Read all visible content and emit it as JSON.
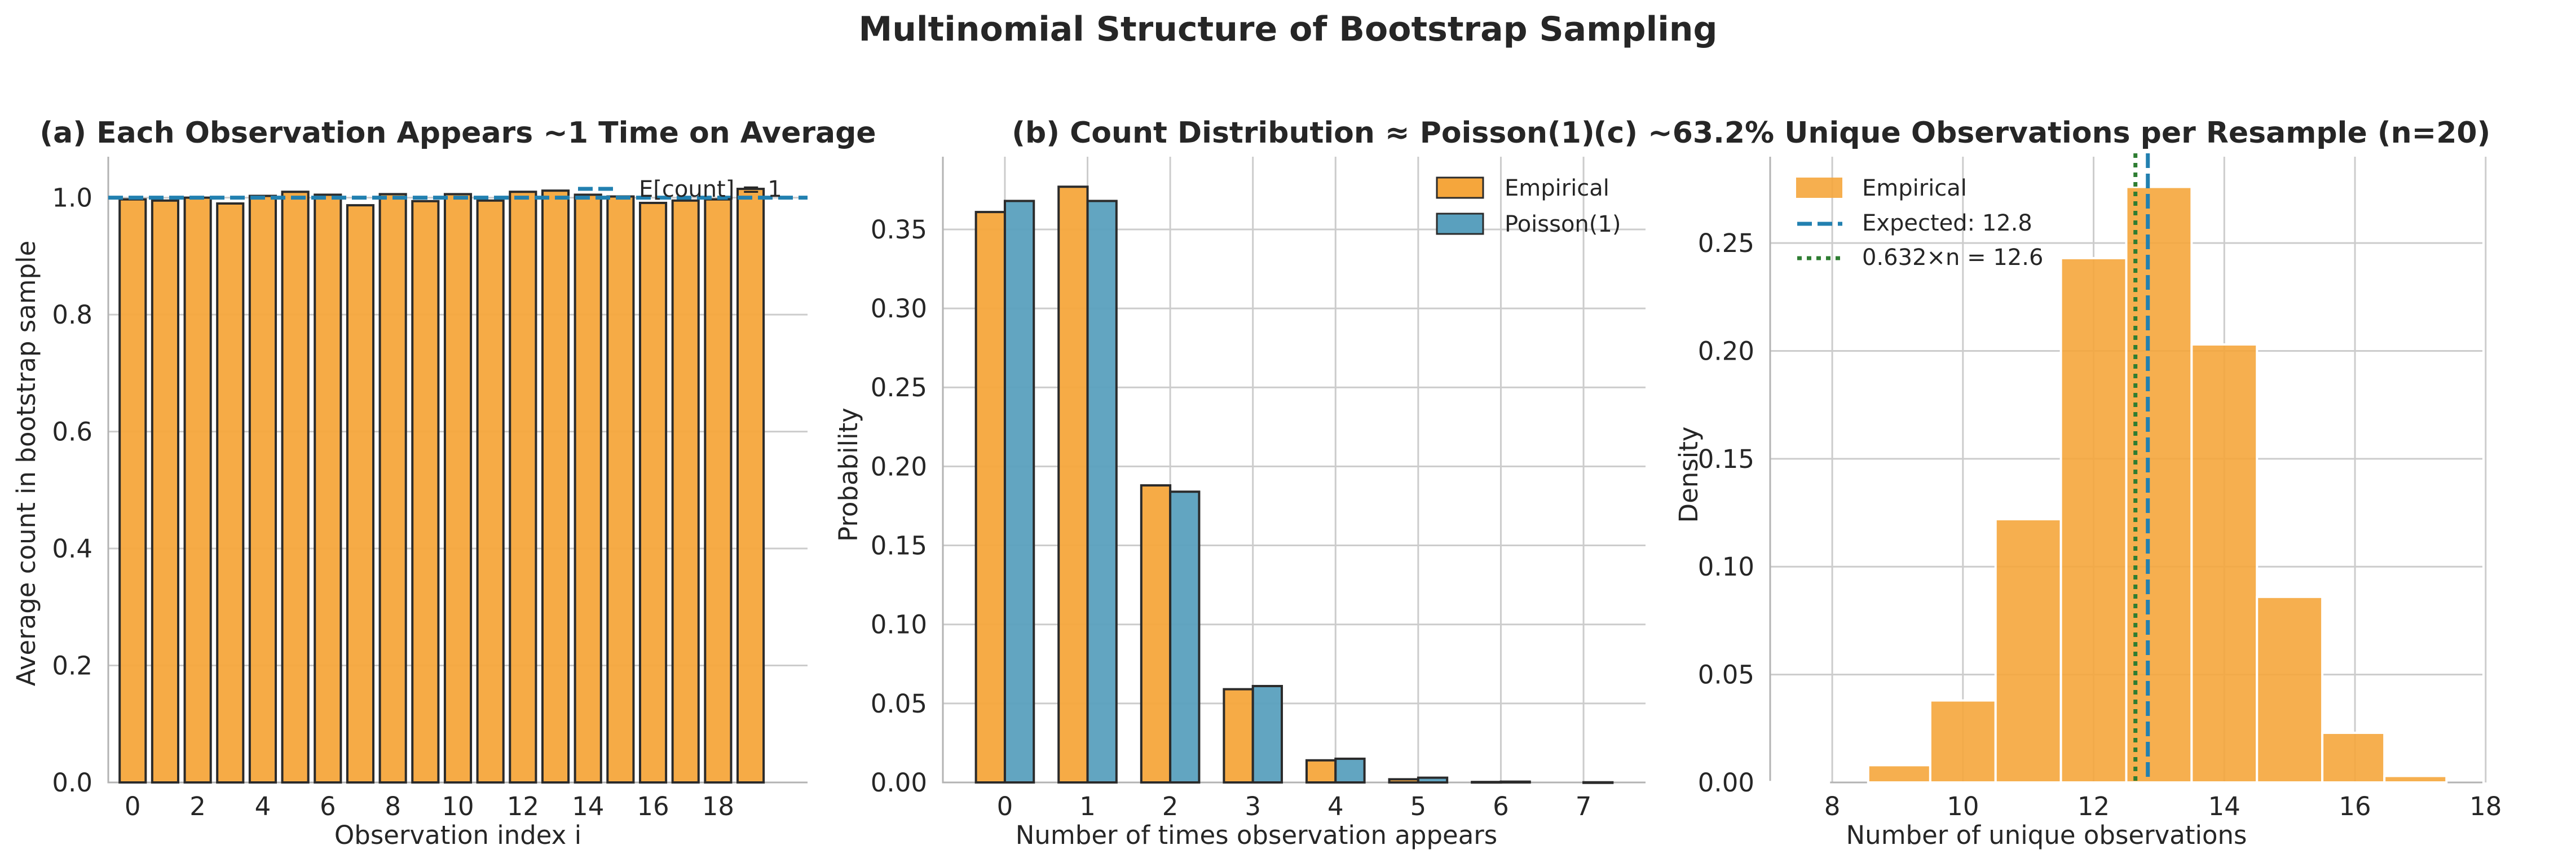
{
  "figure": {
    "suptitle": "Multinomial Structure of Bootstrap Sampling",
    "colors": {
      "orange": "#f5a63c",
      "blue": "#5aa0be",
      "dashBlue": "#2280b0",
      "dotGreen": "#2e7d32",
      "edge": "#2b2b2b"
    }
  },
  "chart_data": [
    {
      "type": "bar",
      "title": "(a) Each Observation Appears ~1 Time on Average",
      "xlabel": "Observation index i",
      "ylabel": "Average count in bootstrap sample",
      "categories": [
        0,
        1,
        2,
        3,
        4,
        5,
        6,
        7,
        8,
        9,
        10,
        11,
        12,
        13,
        14,
        15,
        16,
        17,
        18,
        19
      ],
      "values": [
        0.997,
        0.995,
        1.0,
        0.99,
        1.003,
        1.01,
        1.005,
        0.987,
        1.006,
        0.994,
        1.006,
        0.995,
        1.01,
        1.012,
        1.005,
        1.002,
        0.991,
        0.995,
        0.997,
        1.015
      ],
      "xticks": [
        0,
        2,
        4,
        6,
        8,
        10,
        12,
        14,
        16,
        18
      ],
      "yticks": [
        0.0,
        0.2,
        0.4,
        0.6,
        0.8,
        1.0
      ],
      "ytick_labels": [
        "0.0",
        "0.2",
        "0.4",
        "0.6",
        "0.8",
        "1.0"
      ],
      "ylim": [
        0,
        1.07
      ],
      "xlim": [
        -0.75,
        20.75
      ],
      "reference_line": {
        "y": 1.0,
        "label": "E[count] = 1",
        "style": "dashed"
      },
      "legend_loc": "top-right"
    },
    {
      "type": "bar",
      "title": "(b) Count Distribution ≈ Poisson(1)",
      "xlabel": "Number of times observation appears",
      "ylabel": "Probability",
      "categories": [
        0,
        1,
        2,
        3,
        4,
        5,
        6,
        7
      ],
      "series": [
        {
          "name": "Empirical",
          "values": [
            0.361,
            0.377,
            0.188,
            0.059,
            0.014,
            0.002,
            0.0003,
            0.0
          ]
        },
        {
          "name": "Poisson(1)",
          "values": [
            0.368,
            0.368,
            0.184,
            0.061,
            0.015,
            0.003,
            0.0005,
            0.0001
          ]
        }
      ],
      "yticks": [
        0.0,
        0.05,
        0.1,
        0.15,
        0.2,
        0.25,
        0.3,
        0.35
      ],
      "ytick_labels": [
        "0.00",
        "0.05",
        "0.10",
        "0.15",
        "0.20",
        "0.25",
        "0.30",
        "0.35"
      ],
      "ylim": [
        0,
        0.396
      ],
      "xlim": [
        -0.75,
        7.75
      ],
      "legend_loc": "top-right"
    },
    {
      "type": "histogram",
      "title": "(c) ~63.2% Unique Observations per Resample (n=20)",
      "xlabel": "Number of unique observations",
      "ylabel": "Density",
      "bins": [
        {
          "x0": 7.0,
          "x1": 7.95,
          "density": 0.0002
        },
        {
          "x0": 8.55,
          "x1": 9.5,
          "density": 0.008
        },
        {
          "x0": 9.5,
          "x1": 10.5,
          "density": 0.038
        },
        {
          "x0": 10.5,
          "x1": 11.5,
          "density": 0.122
        },
        {
          "x0": 11.5,
          "x1": 12.5,
          "density": 0.243
        },
        {
          "x0": 12.5,
          "x1": 13.5,
          "density": 0.276
        },
        {
          "x0": 13.5,
          "x1": 14.5,
          "density": 0.203
        },
        {
          "x0": 14.5,
          "x1": 15.5,
          "density": 0.086
        },
        {
          "x0": 15.5,
          "x1": 16.45,
          "density": 0.023
        },
        {
          "x0": 16.45,
          "x1": 17.4,
          "density": 0.003
        }
      ],
      "xticks": [
        8,
        10,
        12,
        14,
        16,
        18
      ],
      "yticks": [
        0.0,
        0.05,
        0.1,
        0.15,
        0.2,
        0.25
      ],
      "ytick_labels": [
        "0.00",
        "0.05",
        "0.10",
        "0.15",
        "0.20",
        "0.25"
      ],
      "xlim": [
        7.05,
        17.95
      ],
      "ylim": [
        0,
        0.29
      ],
      "vlines": [
        {
          "x": 12.83,
          "label": "Expected: 12.8",
          "style": "dashed"
        },
        {
          "x": 12.64,
          "label": "0.632×n = 12.6",
          "style": "dotted"
        }
      ],
      "hist_label": "Empirical",
      "legend_loc": "top-left"
    }
  ]
}
